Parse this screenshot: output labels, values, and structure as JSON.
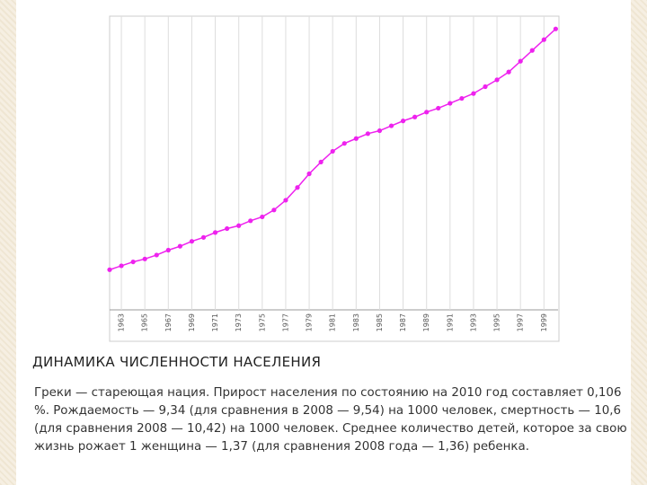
{
  "chart_data": {
    "type": "line",
    "x": [
      1962,
      1963,
      1964,
      1965,
      1966,
      1967,
      1968,
      1969,
      1970,
      1971,
      1972,
      1973,
      1974,
      1975,
      1976,
      1977,
      1978,
      1979,
      1980,
      1981,
      1982,
      1983,
      1984,
      1985,
      1986,
      1987,
      1988,
      1989,
      1990,
      1991,
      1992,
      1993,
      1994,
      1995,
      1996,
      1997,
      1998,
      1999,
      2000
    ],
    "series": [
      {
        "color": "#ee22ee",
        "values": [
          8.41,
          8.45,
          8.49,
          8.52,
          8.56,
          8.61,
          8.65,
          8.7,
          8.74,
          8.79,
          8.83,
          8.86,
          8.91,
          8.95,
          9.02,
          9.12,
          9.25,
          9.39,
          9.51,
          9.62,
          9.7,
          9.75,
          9.8,
          9.83,
          9.88,
          9.93,
          9.97,
          10.02,
          10.06,
          10.11,
          10.16,
          10.21,
          10.28,
          10.35,
          10.43,
          10.54,
          10.65,
          10.76,
          10.87
        ]
      }
    ],
    "xlim": [
      1962,
      2000.2
    ],
    "ylim": [
      8.0,
      11.0
    ],
    "xticks": [
      1963,
      1965,
      1967,
      1969,
      1971,
      1973,
      1975,
      1977,
      1979,
      1981,
      1983,
      1985,
      1987,
      1989,
      1991,
      1993,
      1995,
      1997,
      1999
    ],
    "grid": true
  },
  "slide": {
    "title": "ДИНАМИКА ЧИСЛЕННОСТИ НАСЕЛЕНИЯ",
    "body": "Греки — стареющая нация. Прирост населения по состоянию на 2010 год составляет 0,106 %. Рождаемость — 9,34 (для сравнения в 2008 — 9,54) на 1000 человек, смертность — 10,6 (для сравнения 2008 — 10,42) на 1000 человек. Среднее количество детей, которое за свою жизнь рожает 1 женщина — 1,37 (для сравнения 2008 года — 1,36) ребенка."
  }
}
